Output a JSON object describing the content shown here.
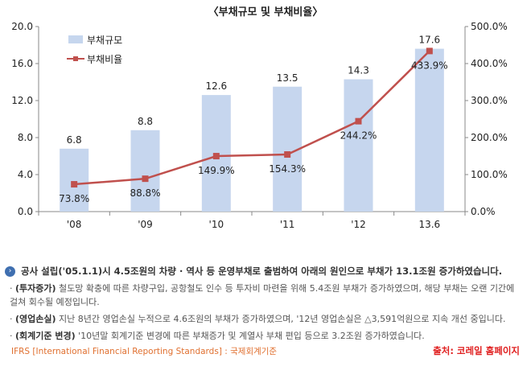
{
  "chart_data": {
    "type": "bar+line",
    "title": "〈부채규모 및 부채비율〉",
    "categories": [
      "'08",
      "'09",
      "'10",
      "'11",
      "'12",
      "13.6"
    ],
    "series": [
      {
        "name": "부채규모",
        "type": "bar",
        "axis": "left",
        "values": [
          6.8,
          8.8,
          12.6,
          13.5,
          14.3,
          17.6
        ],
        "labels": [
          "6.8",
          "8.8",
          "12.6",
          "13.5",
          "14.3",
          "17.6"
        ],
        "color": "#c6d6ee"
      },
      {
        "name": "부채비율",
        "type": "line",
        "axis": "right",
        "values": [
          73.8,
          88.8,
          149.9,
          154.3,
          244.2,
          433.9
        ],
        "labels": [
          "73.8%",
          "88.8%",
          "149.9%",
          "154.3%",
          "244.2%",
          "433.9%"
        ],
        "color": "#c0504d"
      }
    ],
    "y_left": {
      "min": 0,
      "max": 20,
      "ticks": [
        "0.0",
        "4.0",
        "8.0",
        "12.0",
        "16.0",
        "20.0"
      ]
    },
    "y_right": {
      "min": 0,
      "max": 500,
      "ticks": [
        "0.0%",
        "100.0%",
        "200.0%",
        "300.0%",
        "400.0%",
        "500.0%"
      ]
    },
    "legend_position": "top-left"
  },
  "notes": {
    "summary": "공사 설립('05.1.1)시 4.5조원의 차량 · 역사 등 운영부채로 출범하여 아래의 원인으로 부채가 13.1조원 증가하였습니다.",
    "bullets": [
      {
        "term": "(투자증가)",
        "text": " 철도망 확충에 따른 차량구입, 공항철도 인수 등 투자비 마련을 위해 5.4조원 부채가 증가하였으며, 해당 부채는 오랜 기간에 걸쳐 회수될 예정입니다."
      },
      {
        "term": "(영업손실)",
        "text": " 지난 8년간 영업손실 누적으로 4.6조원의 부채가 증가하였으며, '12년 영업손실은 △3,591억원으로 지속 개선 중입니다."
      },
      {
        "term": "(회계기준 변경)",
        "text": " '10년말 회계기준 변경에 따른 부채증가 및 계열사 부채 편입 등으로 3.2조원 증가하였습니다."
      }
    ],
    "ifrs": "IFRS [International Financial Reporting Standards] : 국제회계기준",
    "source": "출처: 코레일 홈페이지"
  }
}
